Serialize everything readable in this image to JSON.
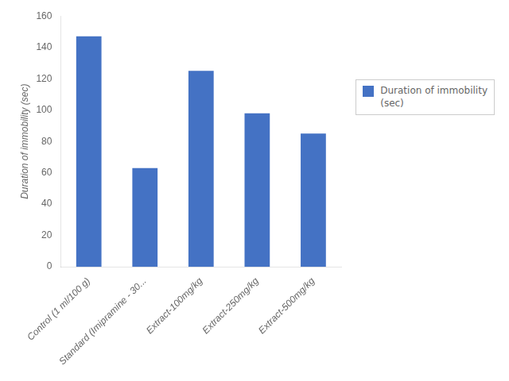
{
  "chart_data": {
    "type": "bar",
    "categories": [
      "Control (1 ml/100 g)",
      "Standard (Imipramine - 30...",
      "Extract-100mg/kg",
      "Extract-250mg/kg",
      "Extract-500mg/kg"
    ],
    "series": [
      {
        "name": "Duration of immobility\n(sec)",
        "color": "#4472C4",
        "values": [
          147,
          63,
          125,
          98,
          85
        ]
      }
    ],
    "ylabel": "Duration of immobility (sec)",
    "ylim": [
      0,
      160
    ],
    "yticks": [
      0,
      20,
      40,
      60,
      80,
      100,
      120,
      140,
      160
    ],
    "grid": false,
    "legend": "right"
  }
}
